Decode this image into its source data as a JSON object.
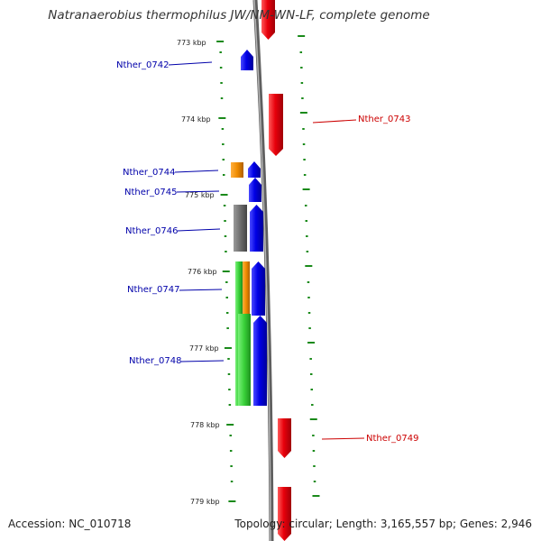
{
  "title": "Natranaerobius thermophilus JW/NM-WN-LF, complete genome",
  "accession": "Accession: NC_010718",
  "topology_info": "Topology: circular; Length: 3,165,557 bp; Genes: 2,946",
  "colors": {
    "forward_strand": "#e8000b",
    "reverse_strand": "#0000e6",
    "label_reverse": "#0000aa",
    "label_forward": "#cc0000",
    "cog_orange": "#f08c00",
    "cog_gray": "#6e6e6e",
    "cog_green": "#38d038",
    "scale_ticks": "#1a8a1a",
    "backbone": "#8a8a8a"
  },
  "kbp_marks": [
    {
      "label": "773 kbp"
    },
    {
      "label": "774 kbp"
    },
    {
      "label": "775 kbp"
    },
    {
      "label": "776 kbp"
    },
    {
      "label": "777 kbp"
    },
    {
      "label": "778 kbp"
    },
    {
      "label": "779 kbp"
    }
  ],
  "genes": [
    {
      "name": "Nther_0742",
      "strand": "reverse"
    },
    {
      "name": "Nther_0743",
      "strand": "forward"
    },
    {
      "name": "Nther_0744",
      "strand": "reverse"
    },
    {
      "name": "Nther_0745",
      "strand": "reverse"
    },
    {
      "name": "Nther_0746",
      "strand": "reverse"
    },
    {
      "name": "Nther_0747",
      "strand": "reverse"
    },
    {
      "name": "Nther_0748",
      "strand": "reverse"
    },
    {
      "name": "Nther_0749",
      "strand": "forward"
    }
  ]
}
